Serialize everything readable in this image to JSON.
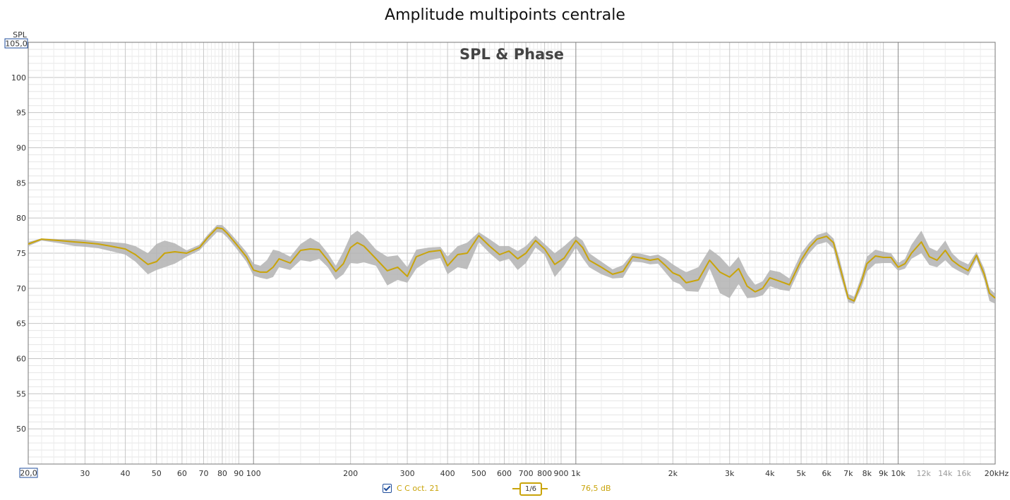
{
  "chart_data": {
    "type": "line",
    "title": "Amplitude multipoints centrale",
    "subtitle": "SPL & Phase",
    "ylabel": "SPL",
    "xlabel": "",
    "x_unit": "kHz",
    "x_scale": "log",
    "xlim": [
      20,
      20000
    ],
    "ylim": [
      45,
      105
    ],
    "y_axis_max_label": "105,0",
    "x_axis_min_label": "20,0",
    "y_ticks": [
      "100",
      "95",
      "90",
      "85",
      "80",
      "75",
      "70",
      "65",
      "60",
      "55",
      "50"
    ],
    "x_ticks": [
      {
        "value": 30,
        "label": "30"
      },
      {
        "value": 40,
        "label": "40"
      },
      {
        "value": 50,
        "label": "50"
      },
      {
        "value": 60,
        "label": "60"
      },
      {
        "value": 70,
        "label": "70"
      },
      {
        "value": 80,
        "label": "80"
      },
      {
        "value": 90,
        "label": "90"
      },
      {
        "value": 100,
        "label": "100"
      },
      {
        "value": 200,
        "label": "200"
      },
      {
        "value": 300,
        "label": "300"
      },
      {
        "value": 400,
        "label": "400"
      },
      {
        "value": 500,
        "label": "500"
      },
      {
        "value": 600,
        "label": "600"
      },
      {
        "value": 700,
        "label": "700"
      },
      {
        "value": 800,
        "label": "800"
      },
      {
        "value": 900,
        "label": "900"
      },
      {
        "value": 1000,
        "label": "1k"
      },
      {
        "value": 2000,
        "label": "2k"
      },
      {
        "value": 3000,
        "label": "3k"
      },
      {
        "value": 4000,
        "label": "4k"
      },
      {
        "value": 5000,
        "label": "5k"
      },
      {
        "value": 6000,
        "label": "6k"
      },
      {
        "value": 7000,
        "label": "7k"
      },
      {
        "value": 8000,
        "label": "8k"
      },
      {
        "value": 9000,
        "label": "9k"
      },
      {
        "value": 10000,
        "label": "10k"
      },
      {
        "value": 12000,
        "label": "12k",
        "muted": true
      },
      {
        "value": 14000,
        "label": "14k",
        "muted": true
      },
      {
        "value": 16000,
        "label": "16k",
        "muted": true
      },
      {
        "value": 20000,
        "label": "20kHz"
      }
    ],
    "grid": true,
    "series": [
      {
        "name": "C C oct. 21",
        "color": "#c9a40a",
        "x": [
          20,
          22,
          25,
          28,
          30,
          33,
          36,
          40,
          43,
          47,
          50,
          53,
          57,
          62,
          68,
          72,
          77,
          80,
          83,
          88,
          95,
          100,
          105,
          110,
          115,
          120,
          130,
          140,
          150,
          160,
          170,
          180,
          190,
          200,
          210,
          220,
          240,
          260,
          280,
          300,
          320,
          350,
          380,
          400,
          430,
          460,
          500,
          540,
          580,
          620,
          660,
          700,
          750,
          800,
          860,
          920,
          1000,
          1050,
          1100,
          1200,
          1300,
          1400,
          1500,
          1600,
          1700,
          1800,
          1900,
          2000,
          2100,
          2200,
          2400,
          2600,
          2800,
          3000,
          3200,
          3400,
          3600,
          3800,
          4000,
          4300,
          4600,
          5000,
          5300,
          5600,
          6000,
          6300,
          6600,
          7000,
          7300,
          7700,
          8000,
          8500,
          9000,
          9500,
          10000,
          10500,
          11000,
          11800,
          12500,
          13200,
          14000,
          14700,
          15500,
          16500,
          17500,
          18500,
          19200,
          20000
        ],
        "y": [
          76.3,
          77.0,
          76.8,
          76.6,
          76.5,
          76.3,
          76.0,
          75.6,
          74.8,
          73.4,
          73.8,
          75.0,
          75.2,
          75.0,
          75.8,
          77.2,
          78.6,
          78.5,
          77.8,
          76.4,
          74.5,
          72.6,
          72.3,
          72.3,
          73.0,
          74.2,
          73.6,
          75.4,
          75.6,
          75.5,
          74.0,
          72.4,
          73.5,
          75.8,
          76.5,
          76.0,
          74.2,
          72.5,
          73.0,
          71.7,
          74.5,
          75.2,
          75.4,
          73.2,
          74.8,
          75.0,
          77.5,
          76.0,
          74.8,
          75.3,
          74.2,
          75.0,
          76.8,
          75.6,
          73.4,
          74.3,
          76.8,
          75.8,
          74.0,
          73.0,
          72.0,
          72.4,
          74.5,
          74.3,
          74.0,
          74.2,
          73.2,
          72.2,
          71.8,
          70.8,
          71.2,
          74.0,
          72.3,
          71.6,
          72.8,
          70.3,
          69.5,
          70.0,
          71.5,
          71.0,
          70.5,
          74.0,
          75.8,
          77.0,
          77.4,
          76.5,
          73.0,
          68.6,
          68.2,
          71.0,
          73.5,
          74.6,
          74.4,
          74.4,
          73.0,
          73.5,
          75.0,
          76.6,
          74.5,
          74.0,
          75.4,
          74.0,
          73.2,
          72.5,
          74.7,
          72.0,
          69.3,
          68.6
        ],
        "range_upper": [
          76.6,
          77.1,
          77.0,
          77.0,
          76.9,
          76.7,
          76.6,
          76.4,
          76.0,
          75.0,
          76.3,
          76.8,
          76.4,
          75.4,
          76.2,
          77.6,
          79.0,
          79.0,
          78.3,
          77.0,
          75.2,
          73.5,
          73.2,
          74.0,
          75.5,
          75.3,
          74.5,
          76.3,
          77.2,
          76.5,
          75.0,
          73.2,
          75.2,
          77.5,
          78.2,
          77.5,
          75.5,
          74.5,
          74.7,
          73.0,
          75.5,
          75.8,
          75.9,
          74.5,
          76.0,
          76.5,
          78.0,
          77.0,
          76.0,
          76.0,
          75.3,
          76.0,
          77.5,
          76.3,
          75.0,
          76.0,
          77.5,
          76.8,
          75.0,
          73.8,
          72.7,
          73.3,
          75.0,
          74.9,
          74.6,
          74.8,
          74.2,
          73.4,
          72.8,
          72.3,
          73.0,
          75.6,
          74.5,
          73.0,
          74.5,
          72.0,
          70.5,
          71.0,
          72.6,
          72.3,
          71.4,
          75.0,
          76.5,
          77.6,
          78.0,
          77.1,
          74.0,
          69.2,
          68.8,
          71.8,
          74.5,
          75.5,
          75.2,
          75.0,
          73.6,
          74.2,
          76.2,
          78.2,
          75.8,
          75.3,
          76.8,
          75.0,
          74.0,
          73.4,
          75.2,
          72.8,
          70.0,
          69.2
        ],
        "range_lower": [
          76.0,
          76.8,
          76.4,
          76.0,
          75.9,
          75.7,
          75.3,
          74.8,
          73.8,
          72.0,
          72.6,
          73.0,
          73.5,
          74.5,
          75.4,
          76.6,
          78.0,
          77.9,
          77.2,
          75.8,
          73.8,
          71.8,
          71.5,
          71.3,
          71.6,
          73.0,
          72.6,
          74.0,
          73.8,
          74.2,
          73.0,
          71.2,
          72.0,
          73.6,
          73.5,
          73.7,
          73.2,
          70.4,
          71.2,
          70.8,
          72.8,
          74.0,
          74.3,
          72.0,
          73.0,
          72.7,
          76.6,
          75.0,
          73.8,
          74.2,
          72.6,
          73.6,
          75.8,
          74.8,
          71.6,
          73.2,
          75.8,
          74.3,
          73.0,
          72.0,
          71.4,
          71.5,
          73.8,
          73.7,
          73.4,
          73.5,
          72.2,
          71.0,
          70.6,
          69.6,
          69.5,
          72.8,
          69.3,
          68.6,
          70.6,
          68.6,
          68.7,
          69.0,
          70.3,
          69.8,
          69.6,
          73.2,
          75.0,
          76.2,
          76.6,
          75.6,
          72.0,
          68.0,
          67.8,
          70.1,
          72.4,
          73.5,
          73.6,
          73.6,
          72.5,
          72.8,
          74.2,
          75.0,
          73.3,
          73.0,
          74.0,
          73.0,
          72.4,
          71.8,
          74.1,
          71.2,
          68.2,
          67.8
        ]
      }
    ]
  },
  "legend": {
    "series_label": "C C oct. 21",
    "smoothing": "1/6",
    "level": "76,5 dB",
    "checked": true
  },
  "colors": {
    "trace": "#c9a40a",
    "range_band": "#b3b3b3",
    "axis_box": "#1f4e9c"
  }
}
